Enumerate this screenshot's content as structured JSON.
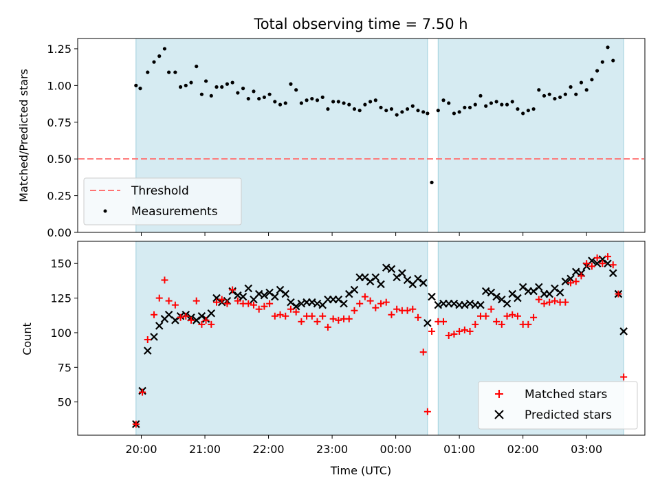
{
  "chart_data": [
    {
      "type": "scatter",
      "title": "Total observing time = 7.50 h",
      "xlabel": "",
      "ylabel": "Matched/Predicted stars",
      "ylim": [
        0,
        1.32
      ],
      "yticks": [
        "0.00",
        "0.25",
        "0.50",
        "0.75",
        "1.00",
        "1.25"
      ],
      "threshold": 0.5,
      "shaded_intervals": [
        [
          "19:55",
          "00:30"
        ],
        [
          "00:40",
          "03:35"
        ]
      ],
      "legend_location": "lower-left",
      "legend": {
        "threshold": "Threshold",
        "measurements": "Measurements"
      },
      "series": [
        {
          "name": "Measurements",
          "x": [
            "19:55",
            "19:59",
            "20:06",
            "20:12",
            "20:17",
            "20:22",
            "20:26",
            "20:32",
            "20:37",
            "20:42",
            "20:47",
            "20:52",
            "20:57",
            "21:01",
            "21:06",
            "21:11",
            "21:16",
            "21:21",
            "21:26",
            "21:31",
            "21:36",
            "21:41",
            "21:46",
            "21:51",
            "21:56",
            "22:01",
            "22:06",
            "22:11",
            "22:16",
            "22:21",
            "22:26",
            "22:31",
            "22:36",
            "22:41",
            "22:46",
            "22:51",
            "22:56",
            "23:01",
            "23:06",
            "23:11",
            "23:16",
            "23:21",
            "23:26",
            "23:31",
            "23:36",
            "23:41",
            "23:46",
            "23:51",
            "23:56",
            "00:01",
            "00:06",
            "00:11",
            "00:16",
            "00:21",
            "00:26",
            "00:30",
            "00:34",
            "00:40",
            "00:45",
            "00:50",
            "00:55",
            "01:00",
            "01:05",
            "01:10",
            "01:15",
            "01:20",
            "01:25",
            "01:30",
            "01:35",
            "01:40",
            "01:45",
            "01:50",
            "01:55",
            "02:00",
            "02:05",
            "02:10",
            "02:15",
            "02:20",
            "02:25",
            "02:30",
            "02:35",
            "02:40",
            "02:45",
            "02:50",
            "02:55",
            "03:00",
            "03:05",
            "03:10",
            "03:15",
            "03:20",
            "03:25",
            "03:30",
            "03:35"
          ],
          "y": [
            1.0,
            0.98,
            1.09,
            1.16,
            1.2,
            1.25,
            1.09,
            1.09,
            0.99,
            1.0,
            1.02,
            1.13,
            0.94,
            1.03,
            0.93,
            0.99,
            0.99,
            1.01,
            1.02,
            0.95,
            0.98,
            0.91,
            0.96,
            0.91,
            0.92,
            0.94,
            0.89,
            0.87,
            0.88,
            1.01,
            0.97,
            0.88,
            0.9,
            0.91,
            0.9,
            0.92,
            0.84,
            0.89,
            0.89,
            0.88,
            0.87,
            0.84,
            0.83,
            0.87,
            0.89,
            0.9,
            0.85,
            0.83,
            0.84,
            0.8,
            0.82,
            0.84,
            0.86,
            0.83,
            0.82,
            0.81,
            0.34,
            0.83,
            0.9,
            0.88,
            0.81,
            0.82,
            0.85,
            0.85,
            0.87,
            0.93,
            0.86,
            0.88,
            0.89,
            0.87,
            0.87,
            0.89,
            0.84,
            0.81,
            0.83,
            0.84,
            0.97,
            0.93,
            0.94,
            0.91,
            0.92,
            0.94,
            0.99,
            0.94,
            1.02,
            0.97,
            1.04,
            1.1,
            1.16,
            1.26,
            1.17,
            null,
            null
          ]
        }
      ]
    },
    {
      "type": "scatter",
      "title": "",
      "xlabel": "Time (UTC)",
      "ylabel": "Count",
      "ylim": [
        26,
        166
      ],
      "yticks": [
        "50",
        "75",
        "100",
        "125",
        "150"
      ],
      "xticks": [
        "20:00",
        "21:00",
        "22:00",
        "23:00",
        "00:00",
        "01:00",
        "02:00",
        "03:00"
      ],
      "shaded_intervals": [
        [
          "19:55",
          "00:30"
        ],
        [
          "00:40",
          "03:35"
        ]
      ],
      "legend_location": "lower-right",
      "series": [
        {
          "name": "Matched stars",
          "color": "#ff0000",
          "marker": "plus",
          "x": [
            "19:55",
            "20:01",
            "20:06",
            "20:12",
            "20:17",
            "20:22",
            "20:26",
            "20:32",
            "20:37",
            "20:42",
            "20:47",
            "20:52",
            "20:57",
            "21:01",
            "21:06",
            "21:11",
            "21:16",
            "21:21",
            "21:26",
            "21:31",
            "21:36",
            "21:41",
            "21:46",
            "21:51",
            "21:56",
            "22:01",
            "22:06",
            "22:11",
            "22:16",
            "22:21",
            "22:26",
            "22:31",
            "22:36",
            "22:41",
            "22:46",
            "22:51",
            "22:56",
            "23:01",
            "23:06",
            "23:11",
            "23:16",
            "23:21",
            "23:26",
            "23:31",
            "23:36",
            "23:41",
            "23:46",
            "23:51",
            "23:56",
            "00:01",
            "00:06",
            "00:11",
            "00:16",
            "00:21",
            "00:26",
            "00:30",
            "00:34",
            "00:40",
            "00:45",
            "00:50",
            "00:55",
            "01:00",
            "01:05",
            "01:10",
            "01:15",
            "01:20",
            "01:25",
            "01:30",
            "01:35",
            "01:40",
            "01:45",
            "01:50",
            "01:55",
            "02:00",
            "02:05",
            "02:10",
            "02:15",
            "02:20",
            "02:25",
            "02:30",
            "02:35",
            "02:40",
            "02:45",
            "02:50",
            "02:55",
            "03:00",
            "03:05",
            "03:10",
            "03:15",
            "03:20",
            "03:25",
            "03:30",
            "03:35"
          ],
          "y": [
            34,
            57,
            95,
            113,
            125,
            138,
            123,
            120,
            111,
            112,
            109,
            123,
            106,
            109,
            106,
            122,
            124,
            121,
            131,
            123,
            121,
            121,
            120,
            117,
            119,
            121,
            112,
            113,
            112,
            117,
            115,
            108,
            112,
            112,
            108,
            112,
            104,
            110,
            109,
            110,
            110,
            116,
            121,
            126,
            123,
            118,
            121,
            122,
            113,
            117,
            116,
            116,
            117,
            111,
            86,
            43,
            101,
            108,
            108,
            98,
            99,
            101,
            102,
            101,
            106,
            112,
            112,
            117,
            108,
            106,
            112,
            113,
            112,
            106,
            106,
            111,
            124,
            121,
            122,
            123,
            122,
            122,
            136,
            137,
            141,
            150,
            148,
            154,
            150,
            155,
            149,
            128,
            68
          ]
        },
        {
          "name": "Predicted stars",
          "color": "#000000",
          "marker": "x",
          "x": [
            "19:55",
            "20:01",
            "20:06",
            "20:12",
            "20:17",
            "20:22",
            "20:26",
            "20:32",
            "20:37",
            "20:42",
            "20:47",
            "20:52",
            "20:57",
            "21:01",
            "21:06",
            "21:11",
            "21:16",
            "21:21",
            "21:26",
            "21:31",
            "21:36",
            "21:41",
            "21:46",
            "21:51",
            "21:56",
            "22:01",
            "22:06",
            "22:11",
            "22:16",
            "22:21",
            "22:26",
            "22:31",
            "22:36",
            "22:41",
            "22:46",
            "22:51",
            "22:56",
            "23:01",
            "23:06",
            "23:11",
            "23:16",
            "23:21",
            "23:26",
            "23:31",
            "23:36",
            "23:41",
            "23:46",
            "23:51",
            "23:56",
            "00:01",
            "00:06",
            "00:11",
            "00:16",
            "00:21",
            "00:26",
            "00:30",
            "00:34",
            "00:40",
            "00:45",
            "00:50",
            "00:55",
            "01:00",
            "01:05",
            "01:10",
            "01:15",
            "01:20",
            "01:25",
            "01:30",
            "01:35",
            "01:40",
            "01:45",
            "01:50",
            "01:55",
            "02:00",
            "02:05",
            "02:10",
            "02:15",
            "02:20",
            "02:25",
            "02:30",
            "02:35",
            "02:40",
            "02:45",
            "02:50",
            "02:55",
            "03:00",
            "03:05",
            "03:10",
            "03:15",
            "03:20",
            "03:25",
            "03:30",
            "03:35"
          ],
          "y": [
            34,
            58,
            87,
            97,
            105,
            110,
            113,
            109,
            112,
            113,
            111,
            109,
            112,
            110,
            114,
            125,
            122,
            123,
            130,
            127,
            126,
            132,
            124,
            128,
            127,
            129,
            126,
            131,
            128,
            122,
            119,
            121,
            122,
            122,
            121,
            120,
            124,
            124,
            124,
            121,
            128,
            131,
            140,
            140,
            137,
            140,
            135,
            147,
            146,
            140,
            143,
            138,
            135,
            139,
            136,
            107,
            126,
            120,
            121,
            121,
            121,
            120,
            120,
            121,
            120,
            120,
            130,
            129,
            126,
            124,
            121,
            128,
            125,
            133,
            130,
            130,
            133,
            128,
            128,
            132,
            129,
            137,
            139,
            144,
            143,
            148,
            152,
            150,
            153,
            150,
            143,
            128,
            101
          ]
        }
      ]
    }
  ]
}
